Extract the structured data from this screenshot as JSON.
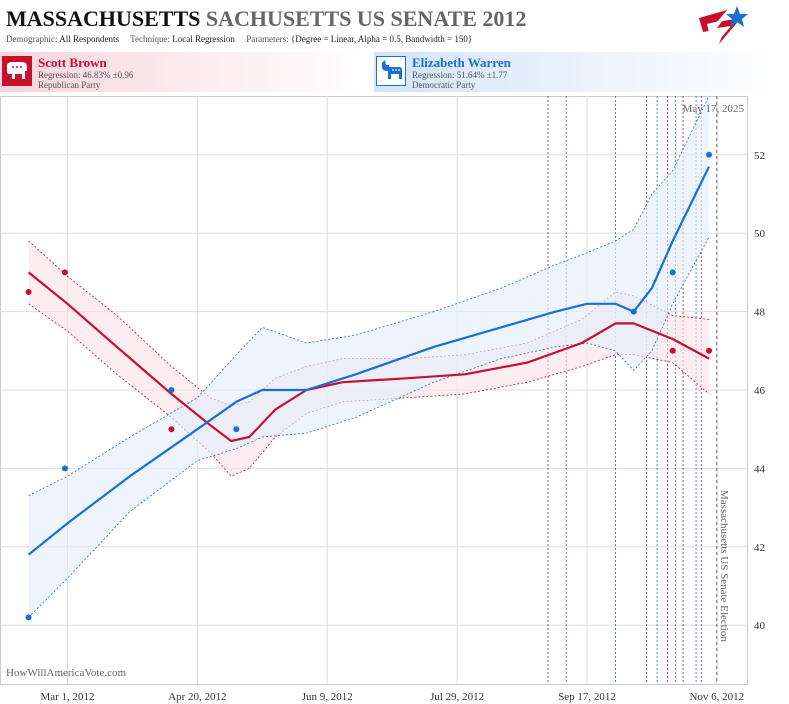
{
  "header": {
    "title_state": "MASSACHUSETTS",
    "title_race": "SACHUSETTS US SENATE 2012",
    "demographic_label": "Demographic:",
    "demographic_value": "All Respondents",
    "technique_label": "Technique:",
    "technique_value": "Local Regression",
    "parameters_label": "Parameters:",
    "parameters_value": "{Degree = Linear, Alpha = 0.5, Bandwidth = 150}"
  },
  "candidates": {
    "rep": {
      "name": "Scott Brown",
      "regression": "Regression: 46.83% ±0.96",
      "party": "Republican Party",
      "icon": "elephant-icon"
    },
    "dem": {
      "name": "Elizabeth Warren",
      "regression": "Regression: 51.64% ±1.77",
      "party": "Democratic Party",
      "icon": "donkey-icon"
    }
  },
  "watermark": "HowWillAmericaVote.com",
  "colors": {
    "rep": "#c8102e",
    "dem": "#1a6fd6",
    "rep_band": "#fbe3e8",
    "dem_band": "#e4eefa",
    "grid": "#dddddd"
  },
  "chart_data": {
    "type": "line",
    "date_annotation": "May 17, 2025",
    "event_label": "Massachusetts US Senate Election",
    "event_date": "2012-11-06",
    "x_tick_labels": [
      "Mar 1, 2012",
      "Apr 20, 2012",
      "Jun 9, 2012",
      "Jul 29, 2012",
      "Sep 17, 2012",
      "Nov 6, 2012"
    ],
    "x_tick_dates": [
      "2012-03-01",
      "2012-04-20",
      "2012-06-09",
      "2012-07-29",
      "2012-09-17",
      "2012-11-06"
    ],
    "xlim": [
      "2012-02-04",
      "2012-11-18"
    ],
    "y_ticks": [
      40,
      42,
      44,
      46,
      48,
      50,
      52
    ],
    "ylim": [
      38.5,
      53.5
    ],
    "grid": true,
    "poll_date_lines": {
      "rep": [
        "2012-09-02",
        "2012-10-10",
        "2012-10-18",
        "2012-10-24",
        "2012-10-31"
      ],
      "dem": [
        "2012-09-09",
        "2012-09-28",
        "2012-10-14",
        "2012-10-21",
        "2012-10-29"
      ]
    },
    "series": [
      {
        "key": "rep",
        "name": "Scott Brown",
        "points": [
          {
            "x": "2012-02-15",
            "y": 48.5
          },
          {
            "x": "2012-02-29",
            "y": 49.0
          },
          {
            "x": "2012-04-10",
            "y": 45.0
          },
          {
            "x": "2012-10-20",
            "y": 47.0
          },
          {
            "x": "2012-11-03",
            "y": 47.0
          }
        ],
        "trend": [
          {
            "x": "2012-02-15",
            "y": 49.0,
            "lo": 48.2,
            "hi": 49.8
          },
          {
            "x": "2012-03-01",
            "y": 48.2,
            "lo": 47.5,
            "hi": 48.9
          },
          {
            "x": "2012-03-20",
            "y": 47.1,
            "lo": 46.4,
            "hi": 47.9
          },
          {
            "x": "2012-04-10",
            "y": 45.9,
            "lo": 45.3,
            "hi": 46.6
          },
          {
            "x": "2012-04-25",
            "y": 45.1,
            "lo": 44.4,
            "hi": 45.8
          },
          {
            "x": "2012-05-03",
            "y": 44.7,
            "lo": 43.8,
            "hi": 45.6
          },
          {
            "x": "2012-05-10",
            "y": 44.8,
            "lo": 44.0,
            "hi": 45.7
          },
          {
            "x": "2012-05-20",
            "y": 45.5,
            "lo": 44.8,
            "hi": 46.3
          },
          {
            "x": "2012-06-01",
            "y": 46.0,
            "lo": 45.4,
            "hi": 46.6
          },
          {
            "x": "2012-06-15",
            "y": 46.2,
            "lo": 45.7,
            "hi": 46.8
          },
          {
            "x": "2012-07-10",
            "y": 46.3,
            "lo": 45.8,
            "hi": 46.8
          },
          {
            "x": "2012-08-01",
            "y": 46.4,
            "lo": 45.9,
            "hi": 46.9
          },
          {
            "x": "2012-08-25",
            "y": 46.7,
            "lo": 46.2,
            "hi": 47.2
          },
          {
            "x": "2012-09-15",
            "y": 47.2,
            "lo": 46.6,
            "hi": 47.8
          },
          {
            "x": "2012-09-28",
            "y": 47.7,
            "lo": 46.9,
            "hi": 48.5
          },
          {
            "x": "2012-10-05",
            "y": 47.7,
            "lo": 46.9,
            "hi": 48.4
          },
          {
            "x": "2012-10-20",
            "y": 47.3,
            "lo": 46.7,
            "hi": 47.9
          },
          {
            "x": "2012-11-03",
            "y": 46.8,
            "lo": 45.9,
            "hi": 47.8
          }
        ]
      },
      {
        "key": "dem",
        "name": "Elizabeth Warren",
        "points": [
          {
            "x": "2012-02-15",
            "y": 40.2
          },
          {
            "x": "2012-02-29",
            "y": 44.0
          },
          {
            "x": "2012-04-10",
            "y": 46.0
          },
          {
            "x": "2012-05-05",
            "y": 45.0
          },
          {
            "x": "2012-10-05",
            "y": 48.0
          },
          {
            "x": "2012-10-20",
            "y": 49.0
          },
          {
            "x": "2012-11-03",
            "y": 52.0
          }
        ],
        "trend": [
          {
            "x": "2012-02-15",
            "y": 41.8,
            "lo": 40.2,
            "hi": 43.3
          },
          {
            "x": "2012-03-01",
            "y": 42.6,
            "lo": 41.2,
            "hi": 43.8
          },
          {
            "x": "2012-03-25",
            "y": 43.8,
            "lo": 42.9,
            "hi": 44.8
          },
          {
            "x": "2012-04-20",
            "y": 45.0,
            "lo": 44.2,
            "hi": 45.8
          },
          {
            "x": "2012-05-05",
            "y": 45.7,
            "lo": 44.5,
            "hi": 46.9
          },
          {
            "x": "2012-05-15",
            "y": 46.0,
            "lo": 44.8,
            "hi": 47.6
          },
          {
            "x": "2012-06-01",
            "y": 46.0,
            "lo": 44.9,
            "hi": 47.2
          },
          {
            "x": "2012-06-20",
            "y": 46.4,
            "lo": 45.3,
            "hi": 47.4
          },
          {
            "x": "2012-07-20",
            "y": 47.1,
            "lo": 46.2,
            "hi": 48.0
          },
          {
            "x": "2012-08-15",
            "y": 47.6,
            "lo": 46.8,
            "hi": 48.6
          },
          {
            "x": "2012-09-05",
            "y": 48.0,
            "lo": 47.1,
            "hi": 49.2
          },
          {
            "x": "2012-09-17",
            "y": 48.2,
            "lo": 47.2,
            "hi": 49.5
          },
          {
            "x": "2012-09-28",
            "y": 48.2,
            "lo": 47.0,
            "hi": 49.8
          },
          {
            "x": "2012-10-05",
            "y": 48.0,
            "lo": 46.5,
            "hi": 50.1
          },
          {
            "x": "2012-10-12",
            "y": 48.6,
            "lo": 47.0,
            "hi": 51.0
          },
          {
            "x": "2012-10-20",
            "y": 49.8,
            "lo": 48.2,
            "hi": 51.6
          },
          {
            "x": "2012-11-03",
            "y": 51.7,
            "lo": 49.9,
            "hi": 53.5
          }
        ]
      }
    ]
  }
}
